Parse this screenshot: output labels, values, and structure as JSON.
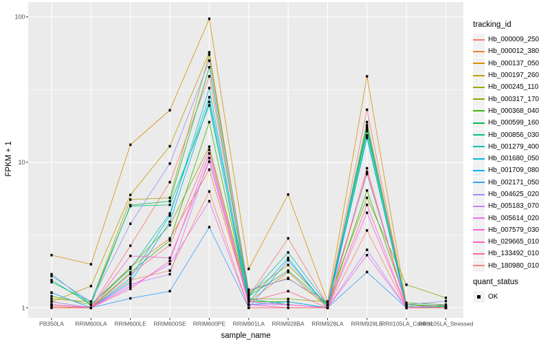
{
  "chart_data": {
    "type": "line",
    "title": "",
    "xlabel": "sample_name",
    "ylabel": "FPKM + 1",
    "y_scale": "log10",
    "y_ticks": [
      1,
      10,
      100
    ],
    "y_minor_gridlines": [
      3.1623,
      31.623
    ],
    "ylim": [
      0.85,
      122
    ],
    "grid": true,
    "legend_position": "right",
    "legend_title": "tracking_id",
    "panel_background": "#EBEBEB",
    "gridline_color": "#FFFFFF",
    "point_color": "#000000",
    "x_categories": [
      "PB350LA",
      "RRIM600LA",
      "RRIM600LE",
      "RRIM600SE",
      "RRIM600PE",
      "RRIM901LA",
      "RRIM928BA",
      "RRIM928LA",
      "RRIM928LE",
      "RRII105LA_Control",
      "RRII105LA_Stressed"
    ],
    "series": [
      {
        "name": "Hb_000009_250",
        "color": "#F8766D",
        "values": [
          1.05,
          1.0,
          2.67,
          7.3,
          39.0,
          1.2,
          3.0,
          1.05,
          23.0,
          1.02,
          1.0
        ]
      },
      {
        "name": "Hb_000012_380",
        "color": "#EA8331",
        "values": [
          1.02,
          1.0,
          1.9,
          3.0,
          8.9,
          1.1,
          1.76,
          1.0,
          8.6,
          1.0,
          1.02
        ]
      },
      {
        "name": "Hb_000137_050",
        "color": "#D89000",
        "values": [
          2.3,
          1.99,
          13.2,
          22.8,
          97.0,
          1.85,
          6.0,
          1.1,
          39.0,
          1.05,
          1.0
        ]
      },
      {
        "name": "Hb_000197_260",
        "color": "#C09B00",
        "values": [
          1.1,
          1.41,
          5.97,
          12.9,
          57.0,
          1.3,
          1.6,
          1.05,
          17.0,
          1.02,
          1.0
        ]
      },
      {
        "name": "Hb_000245_110",
        "color": "#A3A500",
        "values": [
          1.15,
          1.1,
          5.54,
          5.7,
          55.0,
          1.25,
          1.97,
          1.05,
          18.9,
          1.05,
          1.02
        ]
      },
      {
        "name": "Hb_000317_170",
        "color": "#7CAE00",
        "values": [
          1.2,
          1.05,
          1.9,
          3.7,
          12.8,
          1.15,
          1.15,
          1.1,
          5.7,
          1.44,
          1.17
        ]
      },
      {
        "name": "Hb_000368_040",
        "color": "#39B600",
        "values": [
          1.1,
          1.0,
          1.75,
          2.9,
          18.9,
          1.1,
          1.1,
          1.0,
          6.4,
          1.08,
          1.05
        ]
      },
      {
        "name": "Hb_000599_160",
        "color": "#00BB4E",
        "values": [
          1.55,
          1.05,
          5.07,
          5.4,
          45.0,
          1.2,
          1.8,
          1.05,
          16.4,
          1.05,
          1.03
        ]
      },
      {
        "name": "Hb_000856_030",
        "color": "#00C087",
        "values": [
          1.5,
          1.1,
          5.0,
          5.1,
          24.6,
          1.15,
          1.05,
          1.0,
          15.3,
          1.0,
          1.0
        ]
      },
      {
        "name": "Hb_001279_400",
        "color": "#00C0B5",
        "values": [
          1.7,
          1.05,
          1.85,
          4.45,
          28.0,
          1.2,
          2.4,
          1.05,
          18.0,
          1.0,
          1.02
        ]
      },
      {
        "name": "Hb_001680_050",
        "color": "#00BCD8",
        "values": [
          1.27,
          1.0,
          1.6,
          4.3,
          32.4,
          1.1,
          2.2,
          1.0,
          17.5,
          1.02,
          1.0
        ]
      },
      {
        "name": "Hb_001709_080",
        "color": "#00B0F6",
        "values": [
          1.05,
          1.0,
          1.5,
          3.9,
          26.0,
          1.05,
          1.1,
          1.0,
          14.7,
          1.0,
          1.0
        ]
      },
      {
        "name": "Hb_002171_050",
        "color": "#35A2FF",
        "values": [
          1.27,
          1.0,
          1.16,
          1.3,
          3.58,
          1.0,
          2.12,
          1.0,
          1.76,
          1.0,
          1.0
        ]
      },
      {
        "name": "Hb_004625_020",
        "color": "#9590FF",
        "values": [
          1.65,
          1.1,
          3.78,
          9.8,
          50.0,
          1.33,
          1.58,
          1.1,
          8.3,
          1.05,
          1.11
        ]
      },
      {
        "name": "Hb_005183_070",
        "color": "#C77CFF",
        "values": [
          1.1,
          1.0,
          1.45,
          1.7,
          10.7,
          1.05,
          1.05,
          1.0,
          2.5,
          1.0,
          1.05
        ]
      },
      {
        "name": "Hb_005614_020",
        "color": "#E76BF3",
        "values": [
          1.05,
          1.0,
          1.4,
          2.0,
          5.4,
          1.0,
          1.0,
          1.0,
          2.3,
          1.0,
          1.0
        ]
      },
      {
        "name": "Hb_007579_030",
        "color": "#FA62DB",
        "values": [
          1.0,
          1.0,
          2.27,
          2.2,
          10.1,
          1.1,
          1.05,
          1.0,
          4.5,
          1.0,
          1.0
        ]
      },
      {
        "name": "Hb_029665_010",
        "color": "#FF62BC",
        "values": [
          1.05,
          1.0,
          1.35,
          2.1,
          11.5,
          1.05,
          1.0,
          1.0,
          5.1,
          1.0,
          1.0
        ]
      },
      {
        "name": "Hb_133492_010",
        "color": "#FF6A98",
        "values": [
          1.0,
          1.0,
          1.7,
          2.7,
          12.2,
          1.1,
          1.3,
          1.0,
          9.1,
          1.0,
          1.0
        ]
      },
      {
        "name": "Hb_180980_010",
        "color": "#FE8370",
        "values": [
          1.0,
          1.0,
          1.55,
          1.8,
          6.3,
          1.0,
          1.0,
          1.0,
          3.4,
          1.0,
          1.0
        ]
      }
    ],
    "quant_status": {
      "title": "quant_status",
      "items": [
        "OK"
      ]
    }
  }
}
